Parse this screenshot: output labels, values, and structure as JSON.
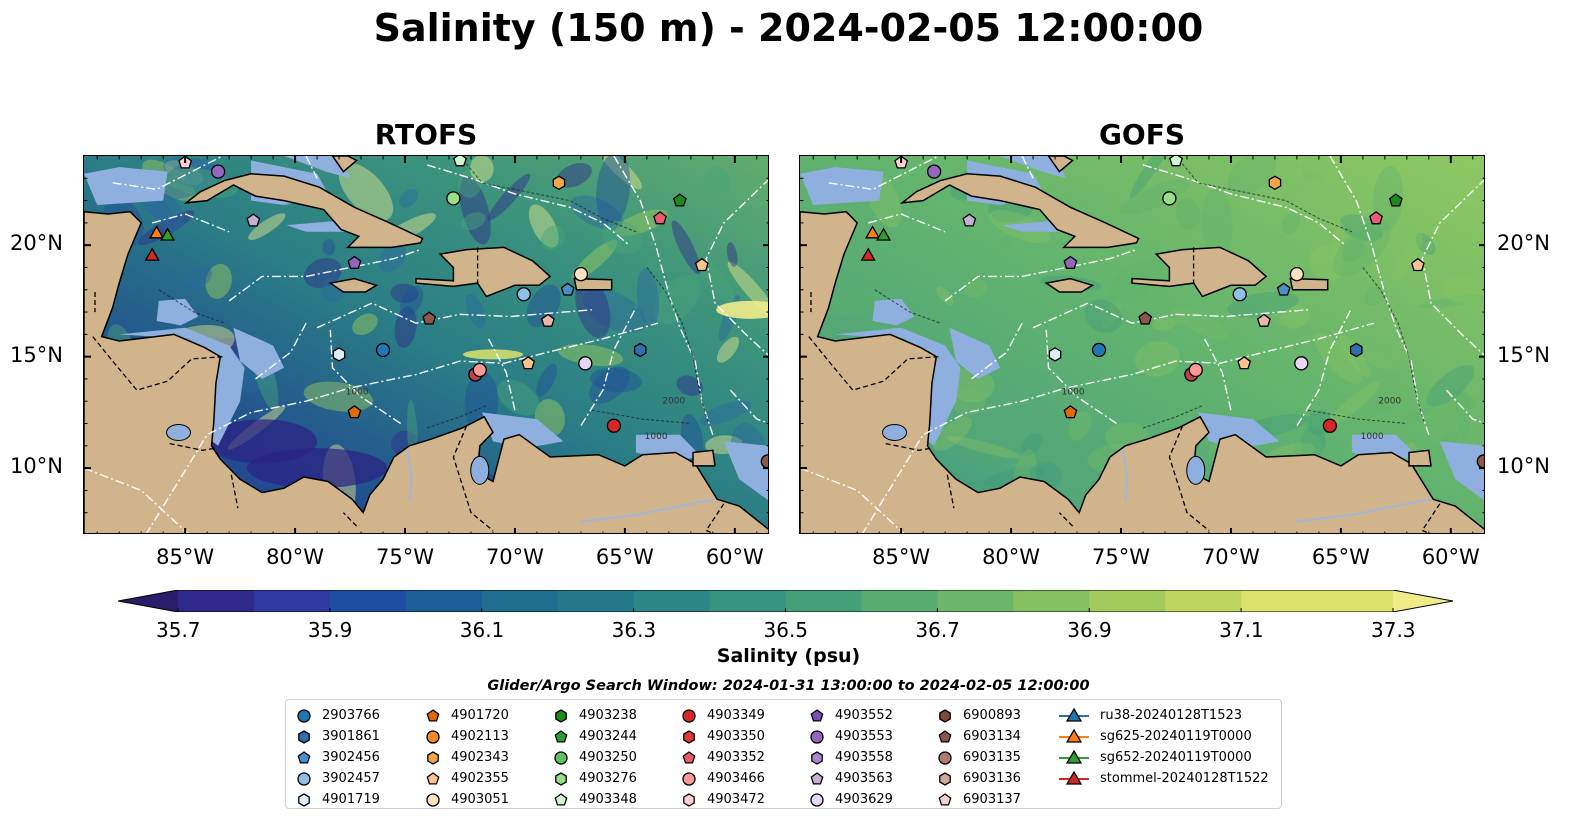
{
  "title": "Salinity (150 m) - 2024-02-05 12:00:00",
  "panels": [
    {
      "title": "RTOFS",
      "ocean_tint": "rtofs"
    },
    {
      "title": "GOFS",
      "ocean_tint": "gofs"
    }
  ],
  "map": {
    "lon_range": [
      -89.6,
      -58.4
    ],
    "lat_range": [
      7.0,
      24.0
    ],
    "lon_ticks": [
      -85,
      -80,
      -75,
      -70,
      -65,
      -60
    ],
    "lat_ticks": [
      10,
      15,
      20
    ],
    "lon_tick_labels": [
      "85°W",
      "80°W",
      "75°W",
      "70°W",
      "65°W",
      "60°W"
    ],
    "lat_tick_labels": [
      "10°N",
      "15°N",
      "20°N"
    ],
    "contour_labels": [
      "1000",
      "2000",
      "1000"
    ]
  },
  "colorbar": {
    "label": "Salinity (psu)",
    "min": 35.7,
    "max": 37.3,
    "step": 0.1,
    "tick_labels": [
      "35.7",
      "35.9",
      "36.1",
      "36.3",
      "36.5",
      "36.7",
      "36.9",
      "37.1",
      "37.3"
    ],
    "colors": [
      "#2a1d6b",
      "#2e2a8c",
      "#2f3aa0",
      "#1e4ea2",
      "#1b5f98",
      "#1f6e90",
      "#23798a",
      "#2a8785",
      "#36947f",
      "#45a078",
      "#58ac70",
      "#6cb769",
      "#86c161",
      "#a1cb5d",
      "#bfd65e",
      "#dbe36c",
      "#f1ec8a"
    ]
  },
  "legend_title": "Glider/Argo Search Window: 2024-01-31 13:00:00 to 2024-02-05 12:00:00",
  "legend_columns": [
    [
      {
        "label": "2903766",
        "shape": "circle",
        "color": "#1f77b4"
      },
      {
        "label": "3901861",
        "shape": "hexagon",
        "color": "#2f6fb0"
      },
      {
        "label": "3902456",
        "shape": "pentagon",
        "color": "#4b8fc9"
      },
      {
        "label": "3902457",
        "shape": "circle",
        "color": "#8fc1e8"
      },
      {
        "label": "4901719",
        "shape": "hexagon",
        "color": "#dbeefa"
      }
    ],
    [
      {
        "label": "4901720",
        "shape": "pentagon",
        "color": "#e06a0a"
      },
      {
        "label": "4902113",
        "shape": "circle",
        "color": "#f58a2a"
      },
      {
        "label": "4902343",
        "shape": "hexagon",
        "color": "#f5a54a"
      },
      {
        "label": "4902355",
        "shape": "pentagon",
        "color": "#f9c58c"
      },
      {
        "label": "4903051",
        "shape": "circle",
        "color": "#fde2c4"
      }
    ],
    [
      {
        "label": "4903238",
        "shape": "hexagon",
        "color": "#1a8c1a"
      },
      {
        "label": "4903244",
        "shape": "pentagon",
        "color": "#2ca02c"
      },
      {
        "label": "4903250",
        "shape": "circle",
        "color": "#5cc45c"
      },
      {
        "label": "4903276",
        "shape": "hexagon",
        "color": "#98df8a"
      },
      {
        "label": "4903348",
        "shape": "pentagon",
        "color": "#d3f5cd"
      }
    ],
    [
      {
        "label": "4903349",
        "shape": "circle",
        "color": "#d62728"
      },
      {
        "label": "4903350",
        "shape": "hexagon",
        "color": "#e0393a"
      },
      {
        "label": "4903352",
        "shape": "pentagon",
        "color": "#ef5b6b"
      },
      {
        "label": "4903466",
        "shape": "circle",
        "color": "#ff9896"
      },
      {
        "label": "4903472",
        "shape": "hexagon",
        "color": "#ffd0cf"
      }
    ],
    [
      {
        "label": "4903552",
        "shape": "pentagon",
        "color": "#7b4fb0"
      },
      {
        "label": "4903553",
        "shape": "circle",
        "color": "#9467bd"
      },
      {
        "label": "4903558",
        "shape": "hexagon",
        "color": "#a987d3"
      },
      {
        "label": "4903563",
        "shape": "pentagon",
        "color": "#c5b0d5"
      },
      {
        "label": "4903629",
        "shape": "circle",
        "color": "#e7d6f5"
      }
    ],
    [
      {
        "label": "6900893",
        "shape": "hexagon",
        "color": "#7a4a3a"
      },
      {
        "label": "6903134",
        "shape": "pentagon",
        "color": "#8c564b"
      },
      {
        "label": "6903135",
        "shape": "circle",
        "color": "#b07a6e"
      },
      {
        "label": "6903136",
        "shape": "hexagon",
        "color": "#d2a79d"
      },
      {
        "label": "6903137",
        "shape": "pentagon",
        "color": "#f3d4cc"
      }
    ],
    [
      {
        "label": "ru38-20240128T1523",
        "shape": "triangle-line",
        "color": "#1f77b4"
      },
      {
        "label": "sg625-20240119T0000",
        "shape": "triangle-line",
        "color": "#ff7f0e"
      },
      {
        "label": "sg652-20240119T0000",
        "shape": "triangle-line",
        "color": "#2ca02c"
      },
      {
        "label": "stommel-20240128T1522",
        "shape": "triangle-line",
        "color": "#d62728"
      }
    ]
  ],
  "markers": [
    {
      "id": "2903766",
      "lon": -76.0,
      "lat": 15.3,
      "shape": "circle",
      "color": "#1f77b4"
    },
    {
      "id": "3901861",
      "lon": -64.3,
      "lat": 15.3,
      "shape": "hexagon",
      "color": "#2f6fb0"
    },
    {
      "id": "3902456",
      "lon": -67.6,
      "lat": 18.0,
      "shape": "pentagon",
      "color": "#4b8fc9"
    },
    {
      "id": "3902457",
      "lon": -69.6,
      "lat": 17.8,
      "shape": "circle",
      "color": "#8fc1e8"
    },
    {
      "id": "4901719",
      "lon": -78.0,
      "lat": 15.1,
      "shape": "hexagon",
      "color": "#dbeefa"
    },
    {
      "id": "4901720",
      "lon": -77.3,
      "lat": 12.5,
      "shape": "pentagon",
      "color": "#e06a0a"
    },
    {
      "id": "4902113",
      "lon": -86.3,
      "lat": 20.5,
      "shape": "triangle",
      "color": "#ff7f0e"
    },
    {
      "id": "4902343",
      "lon": -68.0,
      "lat": 22.8,
      "shape": "hexagon",
      "color": "#f5a54a"
    },
    {
      "id": "4902355",
      "lon": -61.5,
      "lat": 19.1,
      "shape": "pentagon",
      "color": "#f9c58c"
    },
    {
      "id": "4903051",
      "lon": -67.0,
      "lat": 18.7,
      "shape": "circle",
      "color": "#fde2c4"
    },
    {
      "id": "4903238",
      "lon": -62.5,
      "lat": 22.0,
      "shape": "pentagon",
      "color": "#1a8c1a"
    },
    {
      "id": "4903244",
      "lon": -85.8,
      "lat": 20.4,
      "shape": "triangle",
      "color": "#2ca02c"
    },
    {
      "id": "4903250",
      "lon": -72.8,
      "lat": 22.1,
      "shape": "circle",
      "color": "#98df8a"
    },
    {
      "id": "4903276",
      "lon": -72.5,
      "lat": 23.8,
      "shape": "pentagon",
      "color": "#d3f5cd"
    },
    {
      "id": "4903349",
      "lon": -65.5,
      "lat": 11.9,
      "shape": "circle",
      "color": "#d62728"
    },
    {
      "id": "4903350",
      "lon": -71.8,
      "lat": 14.2,
      "shape": "circle",
      "color": "#c04050"
    },
    {
      "id": "4903352",
      "lon": -63.4,
      "lat": 21.2,
      "shape": "pentagon",
      "color": "#ef5b6b"
    },
    {
      "id": "4903466",
      "lon": -71.6,
      "lat": 14.4,
      "shape": "circle",
      "color": "#ff9896"
    },
    {
      "id": "4903472",
      "lon": -85.0,
      "lat": 23.7,
      "shape": "pentagon",
      "color": "#ffd0cf"
    },
    {
      "id": "4903552",
      "lon": -77.3,
      "lat": 19.2,
      "shape": "pentagon",
      "color": "#9467bd"
    },
    {
      "id": "4903553",
      "lon": -83.5,
      "lat": 23.3,
      "shape": "circle",
      "color": "#9467bd"
    },
    {
      "id": "4903558",
      "lon": -81.9,
      "lat": 21.1,
      "shape": "pentagon",
      "color": "#c5b0d5"
    },
    {
      "id": "4903629",
      "lon": -66.8,
      "lat": 14.7,
      "shape": "circle",
      "color": "#e7d6f5"
    },
    {
      "id": "6900893",
      "lon": -58.5,
      "lat": 10.3,
      "shape": "circle",
      "color": "#8c564b"
    },
    {
      "id": "6903134",
      "lon": -73.9,
      "lat": 16.7,
      "shape": "pentagon",
      "color": "#8c564b"
    },
    {
      "id": "6903136",
      "lon": -68.5,
      "lat": 16.6,
      "shape": "pentagon",
      "color": "#e8b7a8"
    },
    {
      "id": "6903137",
      "lon": -69.4,
      "lat": 14.7,
      "shape": "pentagon",
      "color": "#f9c58c"
    },
    {
      "id": "stommel",
      "lon": -86.5,
      "lat": 19.5,
      "shape": "triangle",
      "color": "#d62728"
    }
  ]
}
